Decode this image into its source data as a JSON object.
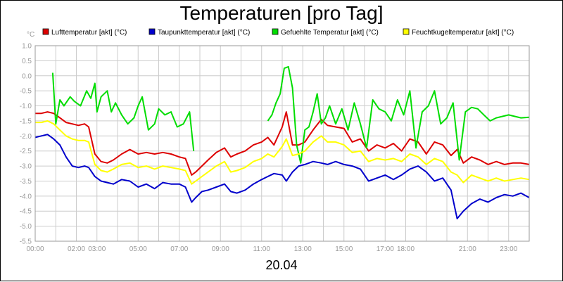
{
  "chart_data": {
    "type": "line",
    "title": "Temperaturen [pro Tag]",
    "unit_label": "°C",
    "date": "20.04",
    "ylim": [
      -5.5,
      1.0
    ],
    "y_ticks": [
      "1.0",
      "0.5",
      "0.0",
      "-0.5",
      "-1.0",
      "-1.5",
      "-2.0",
      "-2.5",
      "-3.0",
      "-3.5",
      "-4.0",
      "-4.5",
      "-5.0",
      "-5.5"
    ],
    "x_ticks": [
      "00:00",
      "02:00",
      "03:00",
      "05:00",
      "07:00",
      "09:00",
      "11:00",
      "13:00",
      "15:00",
      "17:00",
      "18:00",
      "21:00",
      "23:00"
    ],
    "grid": true,
    "legend_position": "top",
    "series": [
      {
        "name": "Lufttemperatur [akt] (°C)",
        "color": "#dd0000",
        "x": [
          0,
          0.3,
          0.6,
          0.9,
          1.2,
          1.5,
          1.8,
          2.1,
          2.4,
          2.6,
          2.9,
          3.2,
          3.5,
          3.8,
          4.2,
          4.6,
          5.0,
          5.4,
          5.8,
          6.2,
          6.6,
          7.0,
          7.3,
          7.6,
          7.8,
          8.1,
          8.4,
          8.8,
          9.2,
          9.5,
          9.8,
          10.2,
          10.6,
          11.0,
          11.3,
          11.6,
          12.0,
          12.2,
          12.5,
          12.8,
          13.1,
          13.5,
          13.9,
          14.2,
          14.6,
          15.0,
          15.4,
          15.8,
          16.2,
          16.6,
          17.0,
          17.4,
          17.8,
          18.2,
          18.6,
          19.0,
          19.4,
          19.8,
          20.2,
          20.5,
          20.8,
          21.2,
          21.6,
          22.0,
          22.4,
          22.8,
          23.2,
          23.6,
          24.0
        ],
        "values": [
          -1.25,
          -1.25,
          -1.2,
          -1.25,
          -1.4,
          -1.55,
          -1.6,
          -1.65,
          -1.6,
          -1.7,
          -2.6,
          -2.85,
          -2.9,
          -2.8,
          -2.6,
          -2.45,
          -2.6,
          -2.55,
          -2.6,
          -2.55,
          -2.6,
          -2.7,
          -2.75,
          -3.3,
          -3.2,
          -3.0,
          -2.8,
          -2.55,
          -2.4,
          -2.7,
          -2.6,
          -2.5,
          -2.3,
          -2.2,
          -2.05,
          -2.3,
          -1.7,
          -1.2,
          -2.3,
          -2.3,
          -2.2,
          -1.8,
          -1.45,
          -1.65,
          -1.7,
          -1.75,
          -2.2,
          -2.1,
          -2.5,
          -2.3,
          -2.4,
          -2.25,
          -2.5,
          -2.1,
          -2.2,
          -2.6,
          -2.2,
          -2.3,
          -2.65,
          -2.45,
          -2.9,
          -2.7,
          -2.8,
          -2.95,
          -2.85,
          -2.95,
          -2.9,
          -2.9,
          -2.95
        ]
      },
      {
        "name": "Taupunkttemperatur [akt] (°C)",
        "color": "#0000cc",
        "x": [
          0,
          0.3,
          0.6,
          0.9,
          1.2,
          1.5,
          1.8,
          2.1,
          2.4,
          2.6,
          2.9,
          3.2,
          3.5,
          3.8,
          4.2,
          4.6,
          5.0,
          5.4,
          5.8,
          6.2,
          6.6,
          7.0,
          7.3,
          7.6,
          7.8,
          8.1,
          8.4,
          8.8,
          9.2,
          9.5,
          9.8,
          10.2,
          10.6,
          11.0,
          11.3,
          11.6,
          12.0,
          12.2,
          12.5,
          12.8,
          13.1,
          13.5,
          13.9,
          14.2,
          14.6,
          15.0,
          15.4,
          15.8,
          16.2,
          16.6,
          17.0,
          17.4,
          17.8,
          18.2,
          18.6,
          19.0,
          19.4,
          19.8,
          20.2,
          20.5,
          20.8,
          21.2,
          21.6,
          22.0,
          22.4,
          22.8,
          23.2,
          23.6,
          24.0
        ],
        "values": [
          -2.05,
          -2.0,
          -1.95,
          -2.1,
          -2.3,
          -2.7,
          -3.0,
          -3.05,
          -3.0,
          -3.05,
          -3.35,
          -3.5,
          -3.55,
          -3.6,
          -3.45,
          -3.5,
          -3.7,
          -3.6,
          -3.75,
          -3.55,
          -3.6,
          -3.6,
          -3.7,
          -4.2,
          -4.05,
          -3.85,
          -3.8,
          -3.7,
          -3.6,
          -3.85,
          -3.9,
          -3.8,
          -3.6,
          -3.45,
          -3.35,
          -3.25,
          -3.3,
          -3.5,
          -3.2,
          -3.0,
          -2.95,
          -2.85,
          -2.9,
          -2.95,
          -2.85,
          -2.95,
          -3.0,
          -3.1,
          -3.5,
          -3.4,
          -3.3,
          -3.45,
          -3.3,
          -3.1,
          -3.0,
          -3.2,
          -3.5,
          -3.4,
          -3.8,
          -4.75,
          -4.5,
          -4.25,
          -4.1,
          -4.2,
          -4.05,
          -3.95,
          -4.0,
          -3.9,
          -4.05
        ]
      },
      {
        "name": "Gefuehlte Temperatur [akt] (°C)",
        "color": "#00dd00",
        "x": [
          0.85,
          1.0,
          1.2,
          1.4,
          1.7,
          1.9,
          2.2,
          2.5,
          2.7,
          2.9,
          3.0,
          3.2,
          3.5,
          3.7,
          3.9,
          4.2,
          4.5,
          4.8,
          5.0,
          5.2,
          5.5,
          5.8,
          6.0,
          6.3,
          6.6,
          6.9,
          7.2,
          7.5,
          7.7
        ],
        "values": [
          0.1,
          -1.6,
          -0.8,
          -1.0,
          -0.7,
          -0.85,
          -1.0,
          -0.5,
          -0.75,
          -0.25,
          -1.2,
          -0.7,
          -0.5,
          -1.2,
          -0.9,
          -1.3,
          -1.6,
          -1.4,
          -1.0,
          -0.7,
          -1.8,
          -1.6,
          -1.1,
          -1.3,
          -1.2,
          -1.7,
          -1.6,
          -1.2,
          -2.5
        ]
      },
      {
        "name": "Gefuehlte Temperatur [akt] (°C) (2)",
        "color": "#00dd00",
        "x": [
          11.3,
          11.5,
          11.7,
          11.9,
          12.1,
          12.3,
          12.5,
          12.7,
          12.9,
          13.1,
          13.3,
          13.5,
          13.7,
          13.9,
          14.1,
          14.3,
          14.6,
          14.9,
          15.2,
          15.5,
          15.8,
          16.1,
          16.4,
          16.7,
          17.0,
          17.3,
          17.6,
          17.9,
          18.2,
          18.5,
          18.8,
          19.1,
          19.4,
          19.7,
          20.0,
          20.3,
          20.6,
          20.9,
          21.2,
          21.5,
          21.8,
          22.1,
          22.4,
          22.7,
          23.0,
          23.3,
          23.6,
          24.0
        ],
        "values": [
          -1.5,
          -1.3,
          -0.9,
          -0.6,
          0.25,
          0.3,
          -0.4,
          -2.3,
          -2.9,
          -1.8,
          -1.7,
          -1.2,
          -0.6,
          -1.6,
          -1.4,
          -1.0,
          -1.6,
          -1.1,
          -1.8,
          -0.9,
          -1.6,
          -2.4,
          -0.8,
          -1.1,
          -1.2,
          -1.5,
          -0.8,
          -1.3,
          -0.5,
          -2.4,
          -1.2,
          -1.0,
          -0.5,
          -1.6,
          -1.4,
          -0.9,
          -2.8,
          -1.2,
          -1.05,
          -1.1,
          -1.3,
          -1.5,
          -1.4,
          -1.35,
          -1.3,
          -1.35,
          -1.4,
          -1.38
        ]
      },
      {
        "name": "Feuchtkugeltemperatur [akt] (°C)",
        "color": "#ffff00",
        "x": [
          0,
          0.3,
          0.6,
          0.9,
          1.2,
          1.5,
          1.8,
          2.1,
          2.4,
          2.6,
          2.9,
          3.2,
          3.5,
          3.8,
          4.2,
          4.6,
          5.0,
          5.4,
          5.8,
          6.2,
          6.6,
          7.0,
          7.3,
          7.6,
          7.8,
          8.1,
          8.4,
          8.8,
          9.2,
          9.5,
          9.8,
          10.2,
          10.6,
          11.0,
          11.3,
          11.6,
          12.0,
          12.2,
          12.5,
          12.8,
          13.1,
          13.5,
          13.9,
          14.2,
          14.6,
          15.0,
          15.4,
          15.8,
          16.2,
          16.6,
          17.0,
          17.4,
          17.8,
          18.2,
          18.6,
          19.0,
          19.4,
          19.8,
          20.2,
          20.5,
          20.8,
          21.2,
          21.6,
          22.0,
          22.4,
          22.8,
          23.2,
          23.6,
          24.0
        ],
        "values": [
          -1.55,
          -1.55,
          -1.5,
          -1.6,
          -1.8,
          -2.0,
          -2.1,
          -2.15,
          -2.15,
          -2.2,
          -2.95,
          -3.15,
          -3.2,
          -3.1,
          -2.95,
          -2.9,
          -3.05,
          -3.0,
          -3.1,
          -3.0,
          -3.05,
          -3.1,
          -3.15,
          -3.6,
          -3.5,
          -3.35,
          -3.2,
          -3.0,
          -2.85,
          -3.2,
          -3.15,
          -3.05,
          -2.85,
          -2.75,
          -2.6,
          -2.7,
          -2.35,
          -2.1,
          -2.65,
          -2.6,
          -2.5,
          -2.2,
          -2.0,
          -2.2,
          -2.2,
          -2.3,
          -2.55,
          -2.5,
          -2.85,
          -2.75,
          -2.8,
          -2.75,
          -2.85,
          -2.6,
          -2.7,
          -2.95,
          -2.75,
          -2.85,
          -3.2,
          -3.3,
          -3.55,
          -3.3,
          -3.4,
          -3.5,
          -3.4,
          -3.5,
          -3.45,
          -3.4,
          -3.45
        ]
      }
    ]
  }
}
